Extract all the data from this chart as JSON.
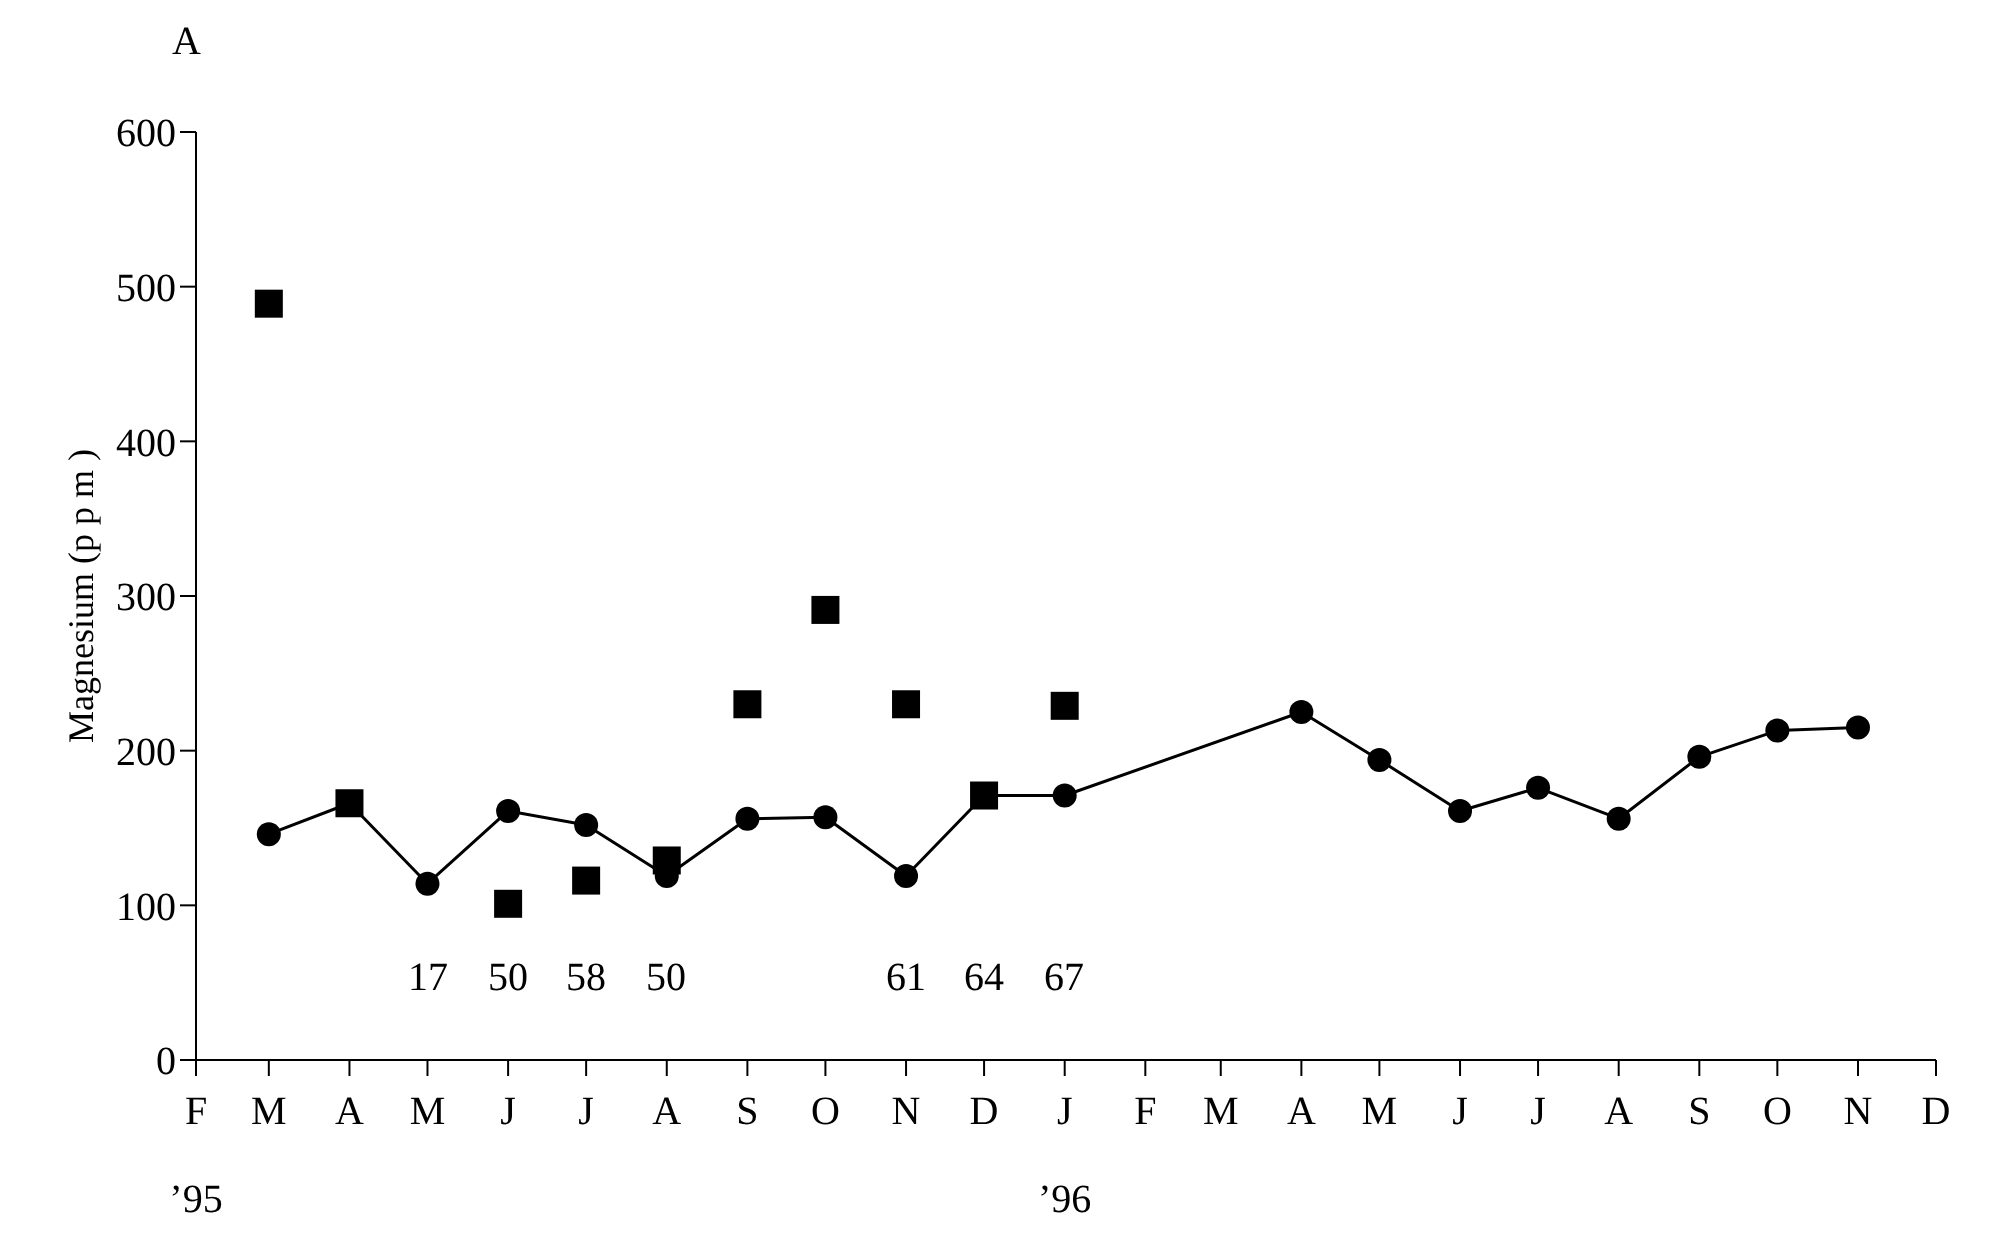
{
  "chart_data": {
    "type": "line",
    "title": "A",
    "ylabel": "Magnesium (p p m )",
    "xlim": [
      "1995-02",
      "1996-12"
    ],
    "xticks": [
      {
        "value": "1995-02",
        "label": "F\n’95"
      },
      {
        "value": "1995-03",
        "label": "M"
      },
      {
        "value": "1995-04",
        "label": "A"
      },
      {
        "value": "1995-05",
        "label": "M"
      },
      {
        "value": "1995-06",
        "label": "J"
      },
      {
        "value": "1995-07",
        "label": "J"
      },
      {
        "value": "1995-08",
        "label": "A"
      },
      {
        "value": "1995-09",
        "label": "S"
      },
      {
        "value": "1995-10",
        "label": "O"
      },
      {
        "value": "1995-11",
        "label": "N"
      },
      {
        "value": "1995-12",
        "label": "D"
      },
      {
        "value": "1996-01",
        "label": "J\n’96"
      },
      {
        "value": "1996-02",
        "label": "F"
      },
      {
        "value": "1996-03",
        "label": "M"
      },
      {
        "value": "1996-04",
        "label": "A"
      },
      {
        "value": "1996-05",
        "label": "M"
      },
      {
        "value": "1996-06",
        "label": "J"
      },
      {
        "value": "1996-07",
        "label": "J"
      },
      {
        "value": "1996-08",
        "label": "A"
      },
      {
        "value": "1996-09",
        "label": "S"
      },
      {
        "value": "1996-10",
        "label": "O"
      },
      {
        "value": "1996-11",
        "label": "N"
      },
      {
        "value": "1996-12",
        "label": "D"
      }
    ],
    "ylim": [
      0,
      600
    ],
    "yticks": [
      0,
      100,
      200,
      300,
      400,
      500,
      600
    ],
    "grid": false,
    "series": [
      {
        "marker": "circle",
        "line_style": "solid",
        "color": "#000000",
        "x": [
          "1995-03",
          "1995-04",
          "1995-05",
          "1995-06",
          "1995-07",
          "1995-08",
          "1995-09",
          "1995-10",
          "1995-11",
          "1995-12",
          "1996-01",
          "1996-04",
          "1996-05",
          "1996-06",
          "1996-07",
          "1996-08",
          "1996-09",
          "1996-10",
          "1996-11"
        ],
        "values": [
          146,
          166,
          114,
          161,
          152,
          119,
          156,
          157,
          119,
          171,
          171,
          225,
          194,
          161,
          176,
          156,
          196,
          213,
          215
        ]
      },
      {
        "type": "scatter",
        "marker": "square",
        "color": "#000000",
        "x": [
          "1995-03",
          "1995-04",
          "1995-06",
          "1995-07",
          "1995-08",
          "1995-09",
          "1995-10",
          "1995-11",
          "1995-12",
          "1996-01"
        ],
        "values": [
          489,
          166,
          101,
          116,
          129,
          230,
          291,
          230,
          171,
          229
        ]
      }
    ],
    "annotations": [
      "17",
      "50",
      "58",
      "50",
      "61",
      "64",
      "67"
    ]
  }
}
